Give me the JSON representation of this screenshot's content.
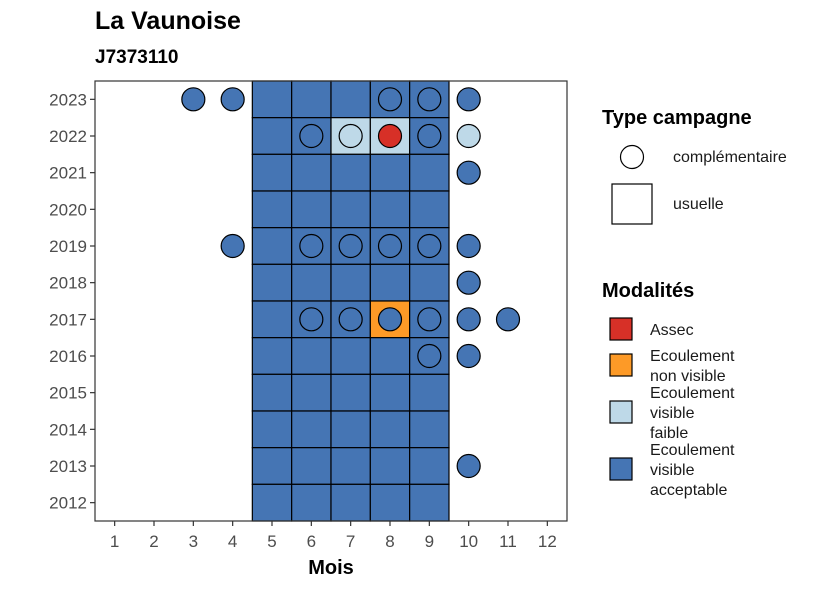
{
  "chart_data": {
    "type": "heatmap",
    "title": "La Vaunoise",
    "subtitle": "J7373110",
    "xlabel": "Mois",
    "ylabel": "",
    "x_ticks": [
      1,
      2,
      3,
      4,
      5,
      6,
      7,
      8,
      9,
      10,
      11,
      12
    ],
    "y_ticks": [
      2012,
      2013,
      2014,
      2015,
      2016,
      2017,
      2018,
      2019,
      2020,
      2021,
      2022,
      2023
    ],
    "xlim": [
      0.5,
      12.5
    ],
    "ylim": [
      2011.5,
      2023.5
    ],
    "grid": false,
    "legend_position": "right",
    "colors": {
      "Assec": "#d73027",
      "Ecoulement non visible": "#fd9a27",
      "Ecoulement visible faible": "#bed9e8",
      "Ecoulement visible acceptable": "#4575b4"
    },
    "legend_shape": {
      "title": "Type campagne",
      "entries": [
        {
          "label": "complémentaire",
          "shape": "circle"
        },
        {
          "label": "usuelle",
          "shape": "square"
        }
      ]
    },
    "legend_fill": {
      "title": "Modalités",
      "entries": [
        {
          "key": "Assec",
          "lines": [
            "Assec"
          ]
        },
        {
          "key": "Ecoulement non visible",
          "lines": [
            "Ecoulement",
            "non visible"
          ]
        },
        {
          "key": "Ecoulement visible faible",
          "lines": [
            "Ecoulement",
            "visible",
            "faible"
          ]
        },
        {
          "key": "Ecoulement visible acceptable",
          "lines": [
            "Ecoulement",
            "visible",
            "acceptable"
          ]
        }
      ]
    },
    "usuelle": [
      {
        "year": 2023,
        "months": [
          5,
          6,
          7,
          8,
          9
        ],
        "modalite": "Ecoulement visible acceptable"
      },
      {
        "year": 2022,
        "months": [
          5,
          6
        ],
        "modalite": "Ecoulement visible acceptable"
      },
      {
        "year": 2022,
        "months": [
          7,
          8
        ],
        "modalite": "Ecoulement visible faible"
      },
      {
        "year": 2022,
        "months": [
          9
        ],
        "modalite": "Ecoulement visible acceptable"
      },
      {
        "year": 2021,
        "months": [
          5,
          6,
          7,
          8,
          9
        ],
        "modalite": "Ecoulement visible acceptable"
      },
      {
        "year": 2020,
        "months": [
          5,
          6,
          7,
          8,
          9
        ],
        "modalite": "Ecoulement visible acceptable"
      },
      {
        "year": 2019,
        "months": [
          5,
          6,
          7,
          8,
          9
        ],
        "modalite": "Ecoulement visible acceptable"
      },
      {
        "year": 2018,
        "months": [
          5,
          6,
          7,
          8,
          9
        ],
        "modalite": "Ecoulement visible acceptable"
      },
      {
        "year": 2017,
        "months": [
          5,
          6,
          7
        ],
        "modalite": "Ecoulement visible acceptable"
      },
      {
        "year": 2017,
        "months": [
          8
        ],
        "modalite": "Ecoulement non visible"
      },
      {
        "year": 2017,
        "months": [
          9
        ],
        "modalite": "Ecoulement visible acceptable"
      },
      {
        "year": 2016,
        "months": [
          5,
          6,
          7,
          8,
          9
        ],
        "modalite": "Ecoulement visible acceptable"
      },
      {
        "year": 2015,
        "months": [
          5,
          6,
          7,
          8,
          9
        ],
        "modalite": "Ecoulement visible acceptable"
      },
      {
        "year": 2014,
        "months": [
          5,
          6,
          7,
          8,
          9
        ],
        "modalite": "Ecoulement visible acceptable"
      },
      {
        "year": 2013,
        "months": [
          5,
          6,
          7,
          8,
          9
        ],
        "modalite": "Ecoulement visible acceptable"
      },
      {
        "year": 2012,
        "months": [
          5,
          6,
          7,
          8,
          9
        ],
        "modalite": "Ecoulement visible acceptable"
      }
    ],
    "complementaire": [
      {
        "year": 2023,
        "month": 3,
        "modalite": "Ecoulement visible acceptable"
      },
      {
        "year": 2023,
        "month": 4,
        "modalite": "Ecoulement visible acceptable"
      },
      {
        "year": 2023,
        "month": 8,
        "modalite": "Ecoulement visible acceptable"
      },
      {
        "year": 2023,
        "month": 9,
        "modalite": "Ecoulement visible acceptable"
      },
      {
        "year": 2023,
        "month": 10,
        "modalite": "Ecoulement visible acceptable"
      },
      {
        "year": 2022,
        "month": 6,
        "modalite": "Ecoulement visible acceptable"
      },
      {
        "year": 2022,
        "month": 7,
        "modalite": "Ecoulement visible faible"
      },
      {
        "year": 2022,
        "month": 8,
        "modalite": "Assec"
      },
      {
        "year": 2022,
        "month": 9,
        "modalite": "Ecoulement visible acceptable"
      },
      {
        "year": 2022,
        "month": 10,
        "modalite": "Ecoulement visible faible"
      },
      {
        "year": 2021,
        "month": 10,
        "modalite": "Ecoulement visible acceptable"
      },
      {
        "year": 2019,
        "month": 4,
        "modalite": "Ecoulement visible acceptable"
      },
      {
        "year": 2019,
        "month": 6,
        "modalite": "Ecoulement visible acceptable"
      },
      {
        "year": 2019,
        "month": 7,
        "modalite": "Ecoulement visible acceptable"
      },
      {
        "year": 2019,
        "month": 8,
        "modalite": "Ecoulement visible acceptable"
      },
      {
        "year": 2019,
        "month": 9,
        "modalite": "Ecoulement visible acceptable"
      },
      {
        "year": 2019,
        "month": 10,
        "modalite": "Ecoulement visible acceptable"
      },
      {
        "year": 2018,
        "month": 10,
        "modalite": "Ecoulement visible acceptable"
      },
      {
        "year": 2017,
        "month": 6,
        "modalite": "Ecoulement visible acceptable"
      },
      {
        "year": 2017,
        "month": 7,
        "modalite": "Ecoulement visible acceptable"
      },
      {
        "year": 2017,
        "month": 8,
        "modalite": "Ecoulement visible acceptable"
      },
      {
        "year": 2017,
        "month": 9,
        "modalite": "Ecoulement visible acceptable"
      },
      {
        "year": 2017,
        "month": 10,
        "modalite": "Ecoulement visible acceptable"
      },
      {
        "year": 2017,
        "month": 11,
        "modalite": "Ecoulement visible acceptable"
      },
      {
        "year": 2016,
        "month": 9,
        "modalite": "Ecoulement visible acceptable"
      },
      {
        "year": 2016,
        "month": 10,
        "modalite": "Ecoulement visible acceptable"
      },
      {
        "year": 2013,
        "month": 10,
        "modalite": "Ecoulement visible acceptable"
      }
    ]
  }
}
